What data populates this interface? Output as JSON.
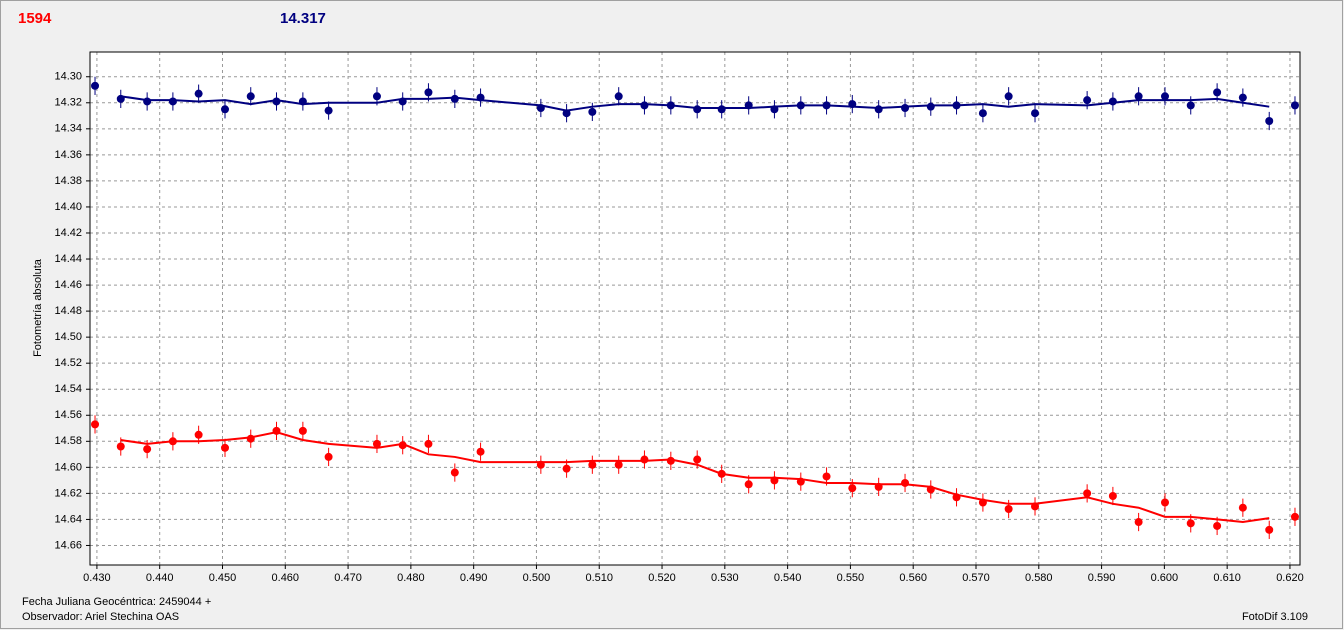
{
  "chart_data": {
    "type": "scatter",
    "header": {
      "left": "1594",
      "right": "14.317"
    },
    "ylabel": "Fotometría absoluta",
    "footer": {
      "date": "Fecha Juliana Geocéntrica: 2459044 +",
      "observer": "Observador: Ariel Stechina OAS",
      "software": "FotoDif 3.109"
    },
    "xlim": [
      0.4289,
      0.6216
    ],
    "ylim": [
      14.281,
      14.675
    ],
    "y_inverted": true,
    "grid": true,
    "xticks": [
      {
        "value": 0.43,
        "label": "0.430"
      },
      {
        "value": 0.44,
        "label": "0.440"
      },
      {
        "value": 0.45,
        "label": "0.450"
      },
      {
        "value": 0.46,
        "label": "0.460"
      },
      {
        "value": 0.47,
        "label": "0.470"
      },
      {
        "value": 0.48,
        "label": "0.480"
      },
      {
        "value": 0.49,
        "label": "0.490"
      },
      {
        "value": 0.5,
        "label": "0.500"
      },
      {
        "value": 0.51,
        "label": "0.510"
      },
      {
        "value": 0.52,
        "label": "0.520"
      },
      {
        "value": 0.53,
        "label": "0.530"
      },
      {
        "value": 0.54,
        "label": "0.540"
      },
      {
        "value": 0.55,
        "label": "0.550"
      },
      {
        "value": 0.56,
        "label": "0.560"
      },
      {
        "value": 0.57,
        "label": "0.570"
      },
      {
        "value": 0.58,
        "label": "0.580"
      },
      {
        "value": 0.59,
        "label": "0.590"
      },
      {
        "value": 0.6,
        "label": "0.600"
      },
      {
        "value": 0.61,
        "label": "0.610"
      },
      {
        "value": 0.62,
        "label": "0.620"
      }
    ],
    "yticks": [
      {
        "value": 14.3,
        "label": "14.30"
      },
      14.32,
      14.34,
      14.36,
      14.38,
      {
        "value": 14.4,
        "label": "14.40"
      },
      14.42,
      14.44,
      14.46,
      14.48,
      {
        "value": 14.5,
        "label": "14.50"
      },
      14.52,
      14.54,
      14.56,
      14.58,
      {
        "value": 14.6,
        "label": "14.60"
      },
      14.62,
      14.64,
      14.66
    ],
    "x": [
      0.4297,
      0.4338,
      0.438,
      0.4421,
      0.4462,
      0.4504,
      0.4545,
      0.4586,
      0.4628,
      0.4669,
      0.4746,
      0.4787,
      0.4828,
      0.487,
      0.4911,
      0.5007,
      0.5048,
      0.5089,
      0.5131,
      0.5172,
      0.5214,
      0.5256,
      0.5295,
      0.5338,
      0.5379,
      0.5421,
      0.5462,
      0.5503,
      0.5545,
      0.5587,
      0.5628,
      0.5669,
      0.5711,
      0.5752,
      0.5794,
      0.5877,
      0.5918,
      0.5959,
      0.6001,
      0.6042,
      0.6084,
      0.6125,
      0.6167,
      0.6208
    ],
    "series": [
      {
        "color": "#000080",
        "error": 0.007,
        "values": [
          14.307,
          14.317,
          14.319,
          14.319,
          14.313,
          14.325,
          14.315,
          14.319,
          14.319,
          14.326,
          14.315,
          14.319,
          14.312,
          14.317,
          14.316,
          14.324,
          14.328,
          14.327,
          14.315,
          14.322,
          14.322,
          14.325,
          14.325,
          14.322,
          14.325,
          14.322,
          14.322,
          14.321,
          14.325,
          14.324,
          14.323,
          14.322,
          14.328,
          14.315,
          14.328,
          14.318,
          14.319,
          14.315,
          14.315,
          14.322,
          14.312,
          14.316,
          14.334,
          14.322
        ],
        "fit": [
          null,
          14.315,
          14.318,
          14.318,
          14.319,
          14.318,
          14.321,
          14.318,
          14.321,
          14.32,
          14.32,
          14.317,
          14.317,
          14.316,
          14.318,
          14.322,
          14.326,
          14.323,
          14.321,
          14.321,
          14.322,
          14.324,
          14.324,
          14.324,
          14.323,
          14.322,
          14.322,
          14.323,
          14.324,
          14.323,
          14.322,
          14.322,
          14.321,
          14.323,
          14.321,
          14.322,
          14.32,
          14.318,
          14.318,
          14.318,
          14.317,
          14.32,
          14.323,
          null
        ]
      },
      {
        "color": "#ff0000",
        "error": 0.007,
        "values": [
          14.567,
          14.584,
          14.586,
          14.58,
          14.575,
          14.585,
          14.578,
          14.572,
          14.572,
          14.592,
          14.582,
          14.583,
          14.582,
          14.604,
          14.588,
          14.598,
          14.601,
          14.598,
          14.598,
          14.594,
          14.595,
          14.594,
          14.605,
          14.613,
          14.61,
          14.611,
          14.607,
          14.616,
          14.615,
          14.612,
          14.617,
          14.623,
          14.627,
          14.632,
          14.63,
          14.62,
          14.622,
          14.642,
          14.627,
          14.643,
          14.645,
          14.631,
          14.648,
          14.638
        ],
        "fit": [
          null,
          14.579,
          14.582,
          14.58,
          14.58,
          14.579,
          14.577,
          14.573,
          14.579,
          14.582,
          14.585,
          14.582,
          14.59,
          14.592,
          14.596,
          14.596,
          14.596,
          14.595,
          14.595,
          14.595,
          14.594,
          14.598,
          14.605,
          14.608,
          14.608,
          14.609,
          14.612,
          14.612,
          14.613,
          14.613,
          14.615,
          14.621,
          14.625,
          14.628,
          14.628,
          14.623,
          14.628,
          14.631,
          14.638,
          14.638,
          14.64,
          14.642,
          14.639,
          null
        ]
      }
    ]
  }
}
